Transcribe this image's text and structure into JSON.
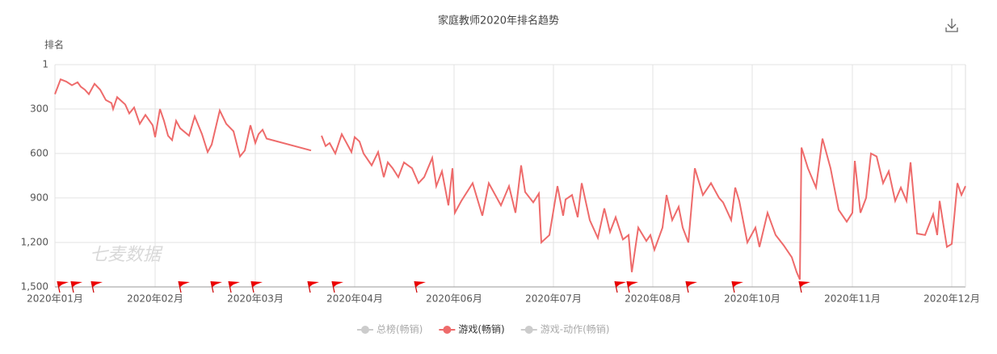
{
  "chart_data": {
    "type": "line",
    "title": "家庭教师2020年排名趋势",
    "y_label": "排名",
    "watermark": "七麦数据",
    "y_inverted": true,
    "grid": true,
    "ylim": [
      1,
      1500
    ],
    "yticks": [
      1,
      300,
      600,
      900,
      {
        "value": 1200,
        "label": "1,200"
      },
      {
        "value": 1500,
        "label": "1,500"
      }
    ],
    "xlim": [
      0,
      1127
    ],
    "xticks": [
      {
        "value": 0,
        "label": "2020年01月"
      },
      {
        "value": 124,
        "label": "2020年02月"
      },
      {
        "value": 248,
        "label": "2020年03月"
      },
      {
        "value": 371,
        "label": "2020年04月"
      },
      {
        "value": 494,
        "label": "2020年06月"
      },
      {
        "value": 617,
        "label": "2020年07月"
      },
      {
        "value": 740,
        "label": "2020年08月"
      },
      {
        "value": 863,
        "label": "2020年10月"
      },
      {
        "value": 987,
        "label": "2020年11月"
      },
      {
        "value": 1110,
        "label": "2020年12月"
      }
    ],
    "x": [
      0,
      7,
      14,
      21,
      28,
      32,
      37,
      42,
      49,
      56,
      63,
      70,
      72,
      77,
      87,
      92,
      98,
      105,
      112,
      121,
      124,
      130,
      135,
      140,
      145,
      150,
      155,
      166,
      173,
      182,
      189,
      194,
      204,
      212,
      221,
      229,
      235,
      242,
      248,
      252,
      257,
      262,
      317,
      324,
      330,
      335,
      340,
      347,
      355,
      360,
      367,
      371,
      377,
      382,
      392,
      400,
      407,
      412,
      418,
      425,
      432,
      442,
      450,
      457,
      467,
      472,
      479,
      487,
      492,
      495,
      503,
      517,
      529,
      537,
      552,
      562,
      570,
      577,
      582,
      592,
      599,
      602,
      612,
      622,
      629,
      632,
      640,
      647,
      652,
      662,
      672,
      680,
      687,
      694,
      703,
      710,
      714,
      722,
      732,
      737,
      742,
      752,
      757,
      764,
      772,
      777,
      784,
      792,
      802,
      812,
      822,
      827,
      837,
      842,
      847,
      857,
      867,
      872,
      882,
      892,
      902,
      912,
      918,
      922,
      924,
      932,
      942,
      950,
      960,
      970,
      980,
      987,
      990,
      997,
      1004,
      1010,
      1017,
      1025,
      1032,
      1040,
      1047,
      1054,
      1059,
      1067,
      1077,
      1087,
      1092,
      1095,
      1104,
      1110,
      1117,
      1122,
      1127
    ],
    "series": [
      {
        "name": "游戏(畅销)",
        "color": "#ee6b6b",
        "values": [
          200,
          100,
          115,
          140,
          120,
          150,
          170,
          200,
          130,
          170,
          240,
          260,
          300,
          220,
          270,
          330,
          290,
          400,
          340,
          410,
          490,
          300,
          380,
          480,
          510,
          380,
          430,
          480,
          350,
          470,
          590,
          540,
          310,
          400,
          450,
          620,
          580,
          410,
          530,
          470,
          440,
          500,
          580,
          null,
          480,
          550,
          530,
          600,
          470,
          520,
          590,
          490,
          520,
          600,
          680,
          590,
          760,
          660,
          700,
          760,
          660,
          700,
          800,
          760,
          630,
          820,
          720,
          950,
          700,
          1000,
          920,
          800,
          1020,
          800,
          950,
          820,
          1000,
          680,
          860,
          930,
          870,
          1200,
          1150,
          820,
          1020,
          910,
          880,
          1030,
          800,
          1050,
          1170,
          970,
          1130,
          1030,
          1180,
          1150,
          1400,
          1100,
          1190,
          1150,
          1250,
          1100,
          880,
          1050,
          960,
          1100,
          1200,
          700,
          880,
          800,
          900,
          930,
          1050,
          830,
          920,
          1200,
          1100,
          1230,
          1000,
          1150,
          1220,
          1300,
          1400,
          1450,
          560,
          700,
          830,
          500,
          700,
          980,
          1060,
          1000,
          650,
          1000,
          900,
          600,
          620,
          800,
          720,
          920,
          830,
          920,
          660,
          1140,
          1150,
          1010,
          1150,
          920,
          1230,
          1210,
          800,
          880,
          820
        ]
      }
    ],
    "legend": [
      {
        "name": "总榜(畅销)",
        "color": "#cccccc"
      },
      {
        "name": "游戏(畅销)",
        "color": "#ee6b6b"
      },
      {
        "name": "游戏-动作(畅销)",
        "color": "#cccccc"
      }
    ]
  }
}
